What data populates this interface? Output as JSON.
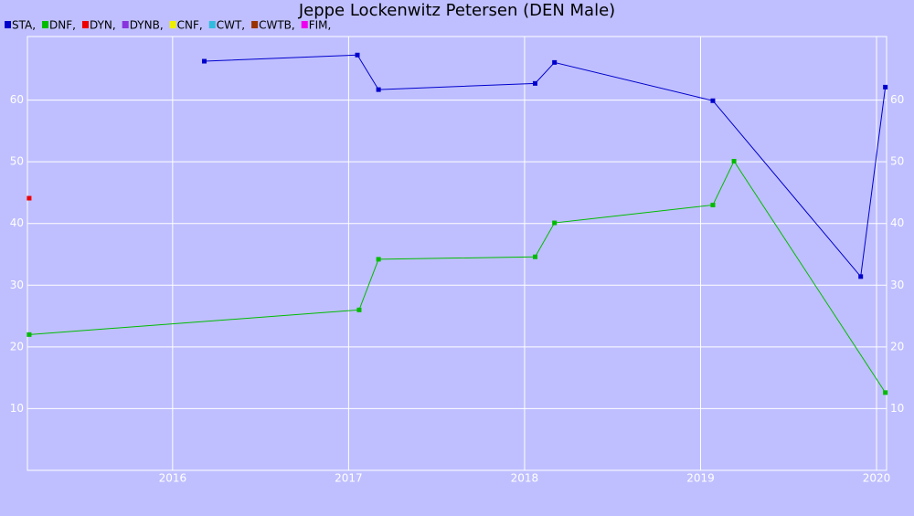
{
  "chart_data": {
    "type": "line",
    "title": "Jeppe Lockenwitz Petersen (DEN Male)",
    "xlim": [
      2015.175,
      2020.057
    ],
    "xticks": [
      2016,
      2017,
      2018,
      2019,
      2020
    ],
    "ylim": [
      0,
      70.3
    ],
    "yticks": [
      10,
      20,
      30,
      40,
      50,
      60
    ],
    "grid": true,
    "series": [
      {
        "name": "STA,",
        "color": "#0000cc",
        "x": [
          2016.18,
          2017.05,
          2017.17,
          2018.06,
          2018.17,
          2019.07,
          2019.91,
          2020.05
        ],
        "values": [
          66.3,
          67.3,
          61.7,
          62.7,
          66.1,
          59.9,
          31.4,
          62.1
        ]
      },
      {
        "name": "DNF,",
        "color": "#00bb00",
        "x": [
          2015.185,
          2017.06,
          2017.17,
          2018.06,
          2018.17,
          2019.07,
          2019.19,
          2020.05
        ],
        "values": [
          22.0,
          26.0,
          34.2,
          34.6,
          40.1,
          43.0,
          50.1,
          12.6
        ]
      },
      {
        "name": "DYN,",
        "color": "#ee0000",
        "x": [
          2015.185
        ],
        "values": [
          44.1
        ]
      },
      {
        "name": "DYNB,",
        "color": "#8833dd",
        "x": [],
        "values": []
      },
      {
        "name": "CNF,",
        "color": "#eeee00",
        "x": [],
        "values": []
      },
      {
        "name": "CWT,",
        "color": "#33bbdd",
        "x": [],
        "values": []
      },
      {
        "name": "CWTB,",
        "color": "#993300",
        "x": [],
        "values": []
      },
      {
        "name": "FIM,",
        "color": "#ee00ee",
        "x": [],
        "values": []
      }
    ]
  }
}
